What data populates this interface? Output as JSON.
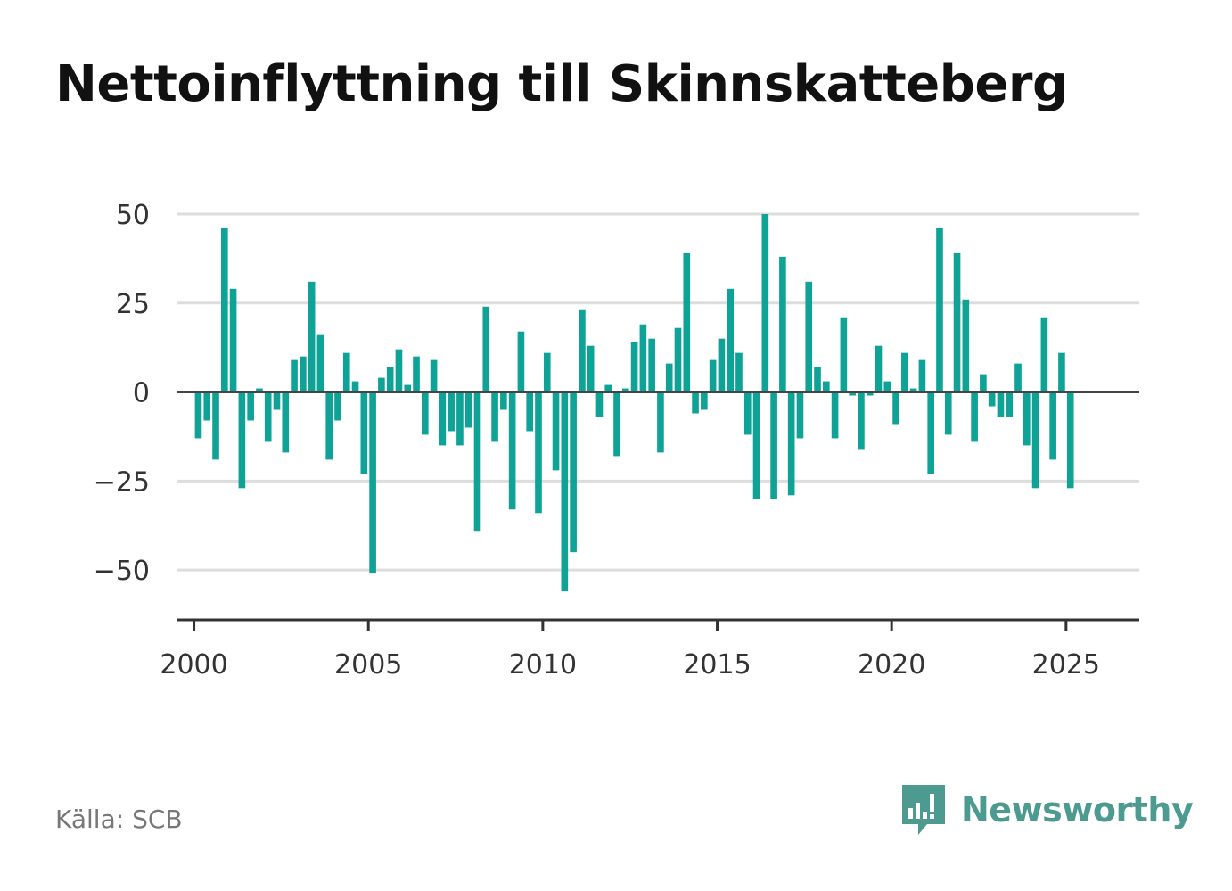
{
  "title": "Nettoinflyttning till Skinnskatteberg",
  "source": "Källa: SCB",
  "brand": {
    "name": "Newsworthy",
    "icon": "newsworthy-logo-icon",
    "color": "#4c9a90"
  },
  "chart_data": {
    "type": "bar",
    "title": "Nettoinflyttning till Skinnskatteberg",
    "xlabel": "",
    "ylabel": "",
    "bar_color": "#0fa398",
    "grid": true,
    "ylim": [
      -64,
      50
    ],
    "xlim": [
      1999.5,
      2027.1
    ],
    "yticks": [
      50,
      25,
      0,
      -25,
      -50
    ],
    "ytick_labels": [
      "50",
      "25",
      "0",
      "−25",
      "−50"
    ],
    "xticks": [
      2000,
      2005,
      2010,
      2015,
      2020,
      2025
    ],
    "xtick_labels": [
      "2000",
      "2005",
      "2010",
      "2015",
      "2020",
      "2025"
    ],
    "x_start": 2000.125,
    "x_step": 0.25,
    "values": [
      -13,
      -8,
      -19,
      46,
      29,
      -27,
      -8,
      1,
      -14,
      -5,
      -17,
      9,
      10,
      31,
      16,
      -19,
      -8,
      11,
      3,
      -23,
      -51,
      4,
      7,
      12,
      2,
      10,
      -12,
      9,
      -15,
      -11,
      -15,
      -10,
      -39,
      24,
      -14,
      -5,
      -33,
      17,
      -11,
      -34,
      11,
      -22,
      -56,
      -45,
      23,
      13,
      -7,
      2,
      -18,
      1,
      14,
      19,
      15,
      -17,
      8,
      18,
      39,
      -6,
      -5,
      9,
      15,
      29,
      11,
      -12,
      -30,
      50,
      -30,
      38,
      -29,
      -13,
      31,
      7,
      3,
      -13,
      21,
      -1,
      -16,
      -1,
      13,
      3,
      -9,
      11,
      1,
      9,
      -23,
      46,
      -12,
      39,
      26,
      -14,
      5,
      -4,
      -7,
      -7,
      8,
      -15,
      -27,
      21,
      -19,
      11,
      -27
    ]
  }
}
